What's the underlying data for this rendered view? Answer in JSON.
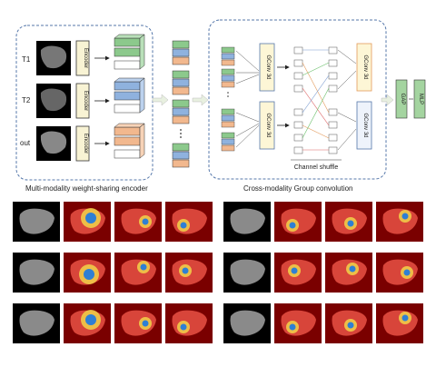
{
  "modalities": [
    "T1",
    "T2",
    "out"
  ],
  "encoder_label": "Encoder",
  "conv_left": "GConv 3d",
  "conv_right": "GConv 3d",
  "channel_shuffle": "Channel shuffle",
  "gap": "GAP",
  "mlp": "MLP",
  "caption_left": "Multi-modality weight-sharing encoder",
  "caption_right": "Cross-modality Group convolution",
  "colors": {
    "t1": "#8cc98c",
    "t2": "#8fb2de",
    "out": "#f2b88e",
    "conv_fill": "#fdf6d6",
    "gap_fill": "#a4d4a0",
    "heat_bg": "#7a0000"
  },
  "heatmap_grid": {
    "rows": 3,
    "groups": 2,
    "columns_per_group": [
      "gray",
      "heat",
      "heat",
      "heat"
    ]
  }
}
